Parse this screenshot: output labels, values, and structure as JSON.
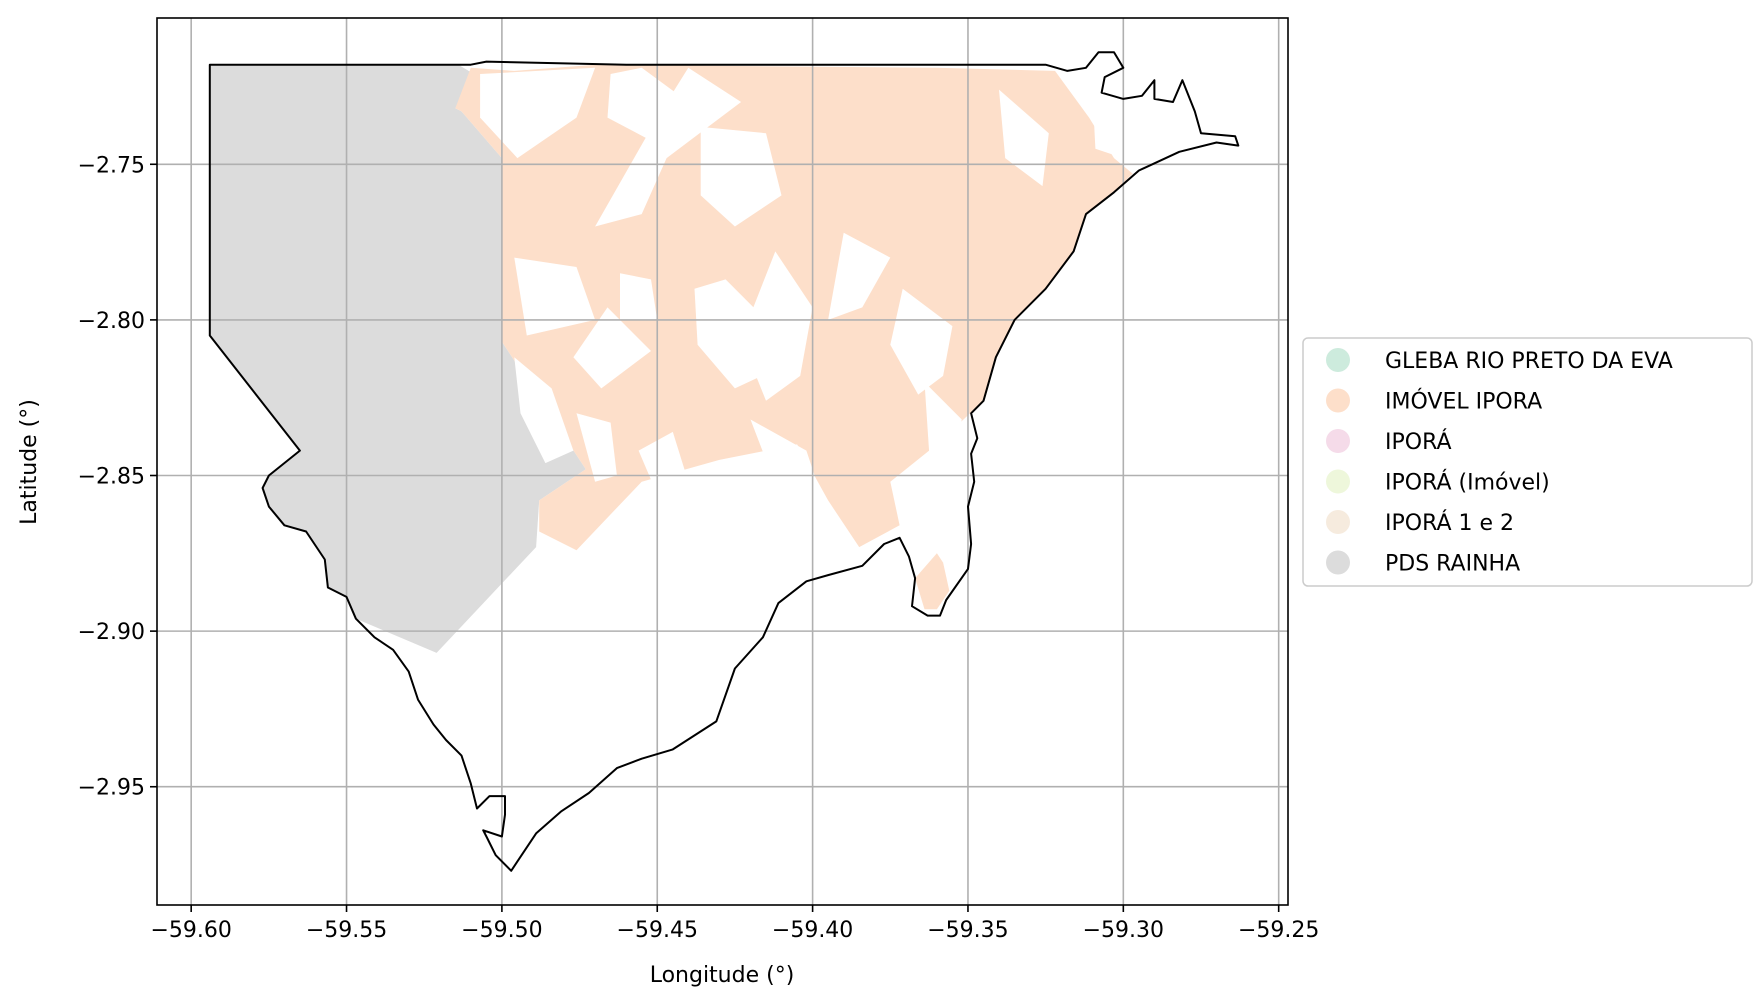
{
  "chart_data": {
    "type": "map",
    "xlabel": "Longitude (°)",
    "ylabel": "Latitude (°)",
    "xlim": [
      -59.611,
      -59.247
    ],
    "ylim": [
      -2.988,
      -2.703
    ],
    "grid": true,
    "x_ticks": [
      {
        "value": -59.6,
        "label": "−59.60"
      },
      {
        "value": -59.55,
        "label": "−59.55"
      },
      {
        "value": -59.5,
        "label": "−59.50"
      },
      {
        "value": -59.45,
        "label": "−59.45"
      },
      {
        "value": -59.4,
        "label": "−59.40"
      },
      {
        "value": -59.35,
        "label": "−59.35"
      },
      {
        "value": -59.3,
        "label": "−59.30"
      },
      {
        "value": -59.25,
        "label": "−59.25"
      }
    ],
    "y_ticks": [
      {
        "value": -2.75,
        "label": "−2.75"
      },
      {
        "value": -2.8,
        "label": "−2.80"
      },
      {
        "value": -2.85,
        "label": "−2.85"
      },
      {
        "value": -2.9,
        "label": "−2.90"
      },
      {
        "value": -2.95,
        "label": "−2.95"
      }
    ],
    "legend_position": "center-right",
    "legend": [
      {
        "label": "GLEBA RIO PRETO DA EVA",
        "color": "#cdebdd"
      },
      {
        "label": "IMÓVEL IPORA",
        "color": "#fddfca"
      },
      {
        "label": "IPORÁ",
        "color": "#f5dbe9"
      },
      {
        "label": "IPORÁ (Imóvel)",
        "color": "#eef7db"
      },
      {
        "label": "IPORÁ 1 e 2",
        "color": "#f6ebde"
      },
      {
        "label": "PDS RAINHA",
        "color": "#dcdcdc"
      }
    ],
    "colors": {
      "pds_rainha": "#dcdcdc",
      "imovel_ipora": "#fddfca",
      "boundary": "#000000",
      "grid": "#b0b0b0"
    },
    "boundary": [
      [
        -59.594,
        -2.718
      ],
      [
        -59.51,
        -2.718
      ],
      [
        -59.505,
        -2.717
      ],
      [
        -59.46,
        -2.718
      ],
      [
        -59.38,
        -2.718
      ],
      [
        -59.325,
        -2.718
      ],
      [
        -59.318,
        -2.72
      ],
      [
        -59.312,
        -2.719
      ],
      [
        -59.308,
        -2.714
      ],
      [
        -59.303,
        -2.714
      ],
      [
        -59.3,
        -2.719
      ],
      [
        -59.306,
        -2.722
      ],
      [
        -59.307,
        -2.727
      ],
      [
        -59.3,
        -2.729
      ],
      [
        -59.294,
        -2.728
      ],
      [
        -59.29,
        -2.723
      ],
      [
        -59.29,
        -2.729
      ],
      [
        -59.284,
        -2.73
      ],
      [
        -59.281,
        -2.723
      ],
      [
        -59.277,
        -2.733
      ],
      [
        -59.275,
        -2.74
      ],
      [
        -59.264,
        -2.741
      ],
      [
        -59.263,
        -2.744
      ],
      [
        -59.27,
        -2.743
      ],
      [
        -59.282,
        -2.746
      ],
      [
        -59.295,
        -2.752
      ],
      [
        -59.303,
        -2.759
      ],
      [
        -59.312,
        -2.766
      ],
      [
        -59.316,
        -2.778
      ],
      [
        -59.325,
        -2.79
      ],
      [
        -59.335,
        -2.8
      ],
      [
        -59.341,
        -2.812
      ],
      [
        -59.345,
        -2.826
      ],
      [
        -59.349,
        -2.83
      ],
      [
        -59.347,
        -2.838
      ],
      [
        -59.349,
        -2.843
      ],
      [
        -59.348,
        -2.852
      ],
      [
        -59.35,
        -2.86
      ],
      [
        -59.349,
        -2.872
      ],
      [
        -59.35,
        -2.88
      ],
      [
        -59.357,
        -2.89
      ],
      [
        -59.359,
        -2.895
      ],
      [
        -59.363,
        -2.895
      ],
      [
        -59.368,
        -2.892
      ],
      [
        -59.367,
        -2.883
      ],
      [
        -59.369,
        -2.876
      ],
      [
        -59.372,
        -2.87
      ],
      [
        -59.377,
        -2.872
      ],
      [
        -59.384,
        -2.879
      ],
      [
        -59.395,
        -2.882
      ],
      [
        -59.402,
        -2.884
      ],
      [
        -59.411,
        -2.891
      ],
      [
        -59.416,
        -2.902
      ],
      [
        -59.425,
        -2.912
      ],
      [
        -59.431,
        -2.929
      ],
      [
        -59.445,
        -2.938
      ],
      [
        -59.455,
        -2.941
      ],
      [
        -59.463,
        -2.944
      ],
      [
        -59.472,
        -2.952
      ],
      [
        -59.481,
        -2.958
      ],
      [
        -59.489,
        -2.965
      ],
      [
        -59.495,
        -2.974
      ],
      [
        -59.497,
        -2.977
      ],
      [
        -59.502,
        -2.972
      ],
      [
        -59.505,
        -2.966
      ],
      [
        -59.506,
        -2.964
      ],
      [
        -59.5,
        -2.966
      ],
      [
        -59.499,
        -2.959
      ],
      [
        -59.499,
        -2.953
      ],
      [
        -59.504,
        -2.953
      ],
      [
        -59.508,
        -2.957
      ],
      [
        -59.51,
        -2.949
      ],
      [
        -59.513,
        -2.94
      ],
      [
        -59.518,
        -2.935
      ],
      [
        -59.522,
        -2.93
      ],
      [
        -59.527,
        -2.922
      ],
      [
        -59.53,
        -2.913
      ],
      [
        -59.535,
        -2.906
      ],
      [
        -59.541,
        -2.902
      ],
      [
        -59.547,
        -2.896
      ],
      [
        -59.55,
        -2.889
      ],
      [
        -59.556,
        -2.886
      ],
      [
        -59.557,
        -2.877
      ],
      [
        -59.563,
        -2.868
      ],
      [
        -59.57,
        -2.866
      ],
      [
        -59.575,
        -2.86
      ],
      [
        -59.577,
        -2.854
      ],
      [
        -59.575,
        -2.85
      ],
      [
        -59.565,
        -2.842
      ],
      [
        -59.594,
        -2.805
      ],
      [
        -59.594,
        -2.718
      ]
    ],
    "regions": [
      {
        "name": "PDS RAINHA",
        "color": "#dcdcdc",
        "polygon": [
          [
            -59.594,
            -2.718
          ],
          [
            -59.514,
            -2.718
          ],
          [
            -59.509,
            -2.721
          ],
          [
            -59.515,
            -2.732
          ],
          [
            -59.513,
            -2.733
          ],
          [
            -59.5,
            -2.748
          ],
          [
            -59.5,
            -2.807
          ],
          [
            -59.473,
            -2.848
          ],
          [
            -59.488,
            -2.858
          ],
          [
            -59.489,
            -2.873
          ],
          [
            -59.521,
            -2.907
          ],
          [
            -59.547,
            -2.896
          ],
          [
            -59.55,
            -2.889
          ],
          [
            -59.556,
            -2.886
          ],
          [
            -59.557,
            -2.877
          ],
          [
            -59.563,
            -2.868
          ],
          [
            -59.57,
            -2.866
          ],
          [
            -59.575,
            -2.86
          ],
          [
            -59.577,
            -2.854
          ],
          [
            -59.575,
            -2.85
          ],
          [
            -59.565,
            -2.842
          ],
          [
            -59.594,
            -2.805
          ]
        ]
      },
      {
        "name": "IMÓVEL IPORA",
        "color": "#fddfca",
        "polygon": [
          [
            -59.51,
            -2.719
          ],
          [
            -59.496,
            -2.72
          ],
          [
            -59.47,
            -2.718
          ],
          [
            -59.36,
            -2.719
          ],
          [
            -59.322,
            -2.72
          ],
          [
            -59.311,
            -2.735
          ],
          [
            -59.303,
            -2.748
          ],
          [
            -59.297,
            -2.753
          ],
          [
            -59.303,
            -2.759
          ],
          [
            -59.312,
            -2.766
          ],
          [
            -59.316,
            -2.778
          ],
          [
            -59.325,
            -2.79
          ],
          [
            -59.335,
            -2.8
          ],
          [
            -59.341,
            -2.812
          ],
          [
            -59.345,
            -2.826
          ],
          [
            -59.36,
            -2.84
          ],
          [
            -59.375,
            -2.852
          ],
          [
            -59.372,
            -2.866
          ],
          [
            -59.385,
            -2.873
          ],
          [
            -59.395,
            -2.858
          ],
          [
            -59.405,
            -2.84
          ],
          [
            -59.43,
            -2.845
          ],
          [
            -59.455,
            -2.852
          ],
          [
            -59.476,
            -2.874
          ],
          [
            -59.488,
            -2.868
          ],
          [
            -59.488,
            -2.858
          ],
          [
            -59.473,
            -2.848
          ],
          [
            -59.5,
            -2.807
          ],
          [
            -59.5,
            -2.748
          ],
          [
            -59.513,
            -2.733
          ],
          [
            -59.515,
            -2.732
          ]
        ]
      },
      {
        "name": "IMÓVEL IPORA",
        "color": "#fddfca",
        "polygon": [
          [
            -59.367,
            -2.883
          ],
          [
            -59.36,
            -2.875
          ],
          [
            -59.358,
            -2.878
          ],
          [
            -59.356,
            -2.887
          ],
          [
            -59.36,
            -2.893
          ],
          [
            -59.364,
            -2.893
          ]
        ]
      }
    ],
    "gaps": [
      [
        [
          -59.507,
          -2.721
        ],
        [
          -59.47,
          -2.719
        ],
        [
          -59.476,
          -2.735
        ],
        [
          -59.495,
          -2.748
        ],
        [
          -59.507,
          -2.735
        ]
      ],
      [
        [
          -59.455,
          -2.719
        ],
        [
          -59.44,
          -2.73
        ],
        [
          -59.449,
          -2.744
        ],
        [
          -59.466,
          -2.735
        ],
        [
          -59.465,
          -2.721
        ]
      ],
      [
        [
          -59.44,
          -2.719
        ],
        [
          -59.423,
          -2.73
        ],
        [
          -59.447,
          -2.748
        ],
        [
          -59.455,
          -2.766
        ],
        [
          -59.47,
          -2.77
        ],
        [
          -59.45,
          -2.735
        ]
      ],
      [
        [
          -59.436,
          -2.738
        ],
        [
          -59.415,
          -2.74
        ],
        [
          -59.41,
          -2.76
        ],
        [
          -59.425,
          -2.77
        ],
        [
          -59.436,
          -2.76
        ]
      ],
      [
        [
          -59.496,
          -2.78
        ],
        [
          -59.476,
          -2.783
        ],
        [
          -59.47,
          -2.8
        ],
        [
          -59.492,
          -2.805
        ]
      ],
      [
        [
          -59.462,
          -2.785
        ],
        [
          -59.452,
          -2.787
        ],
        [
          -59.45,
          -2.8
        ],
        [
          -59.462,
          -2.8
        ]
      ],
      [
        [
          -59.466,
          -2.796
        ],
        [
          -59.452,
          -2.81
        ],
        [
          -59.468,
          -2.822
        ],
        [
          -59.477,
          -2.812
        ]
      ],
      [
        [
          -59.438,
          -2.79
        ],
        [
          -59.428,
          -2.787
        ],
        [
          -59.415,
          -2.8
        ],
        [
          -59.41,
          -2.815
        ],
        [
          -59.425,
          -2.822
        ],
        [
          -59.437,
          -2.808
        ]
      ],
      [
        [
          -59.496,
          -2.812
        ],
        [
          -59.484,
          -2.822
        ],
        [
          -59.477,
          -2.842
        ],
        [
          -59.486,
          -2.846
        ],
        [
          -59.494,
          -2.83
        ]
      ],
      [
        [
          -59.476,
          -2.83
        ],
        [
          -59.465,
          -2.833
        ],
        [
          -59.463,
          -2.85
        ],
        [
          -59.47,
          -2.852
        ]
      ],
      [
        [
          -59.445,
          -2.836
        ],
        [
          -59.44,
          -2.852
        ],
        [
          -59.45,
          -2.856
        ],
        [
          -59.456,
          -2.842
        ]
      ],
      [
        [
          -59.412,
          -2.778
        ],
        [
          -59.4,
          -2.796
        ],
        [
          -59.404,
          -2.818
        ],
        [
          -59.415,
          -2.826
        ],
        [
          -59.423,
          -2.806
        ]
      ],
      [
        [
          -59.39,
          -2.772
        ],
        [
          -59.375,
          -2.78
        ],
        [
          -59.384,
          -2.796
        ],
        [
          -59.395,
          -2.8
        ]
      ],
      [
        [
          -59.371,
          -2.79
        ],
        [
          -59.355,
          -2.802
        ],
        [
          -59.358,
          -2.818
        ],
        [
          -59.366,
          -2.824
        ],
        [
          -59.375,
          -2.808
        ]
      ],
      [
        [
          -59.42,
          -2.832
        ],
        [
          -59.402,
          -2.842
        ],
        [
          -59.398,
          -2.854
        ],
        [
          -59.41,
          -2.858
        ]
      ],
      [
        [
          -59.364,
          -2.82
        ],
        [
          -59.352,
          -2.832
        ],
        [
          -59.356,
          -2.848
        ],
        [
          -59.362,
          -2.85
        ]
      ],
      [
        [
          -59.31,
          -2.725
        ],
        [
          -59.296,
          -2.734
        ],
        [
          -59.3,
          -2.748
        ],
        [
          -59.309,
          -2.745
        ]
      ],
      [
        [
          -59.34,
          -2.726
        ],
        [
          -59.324,
          -2.74
        ],
        [
          -59.326,
          -2.757
        ],
        [
          -59.338,
          -2.748
        ]
      ]
    ]
  }
}
